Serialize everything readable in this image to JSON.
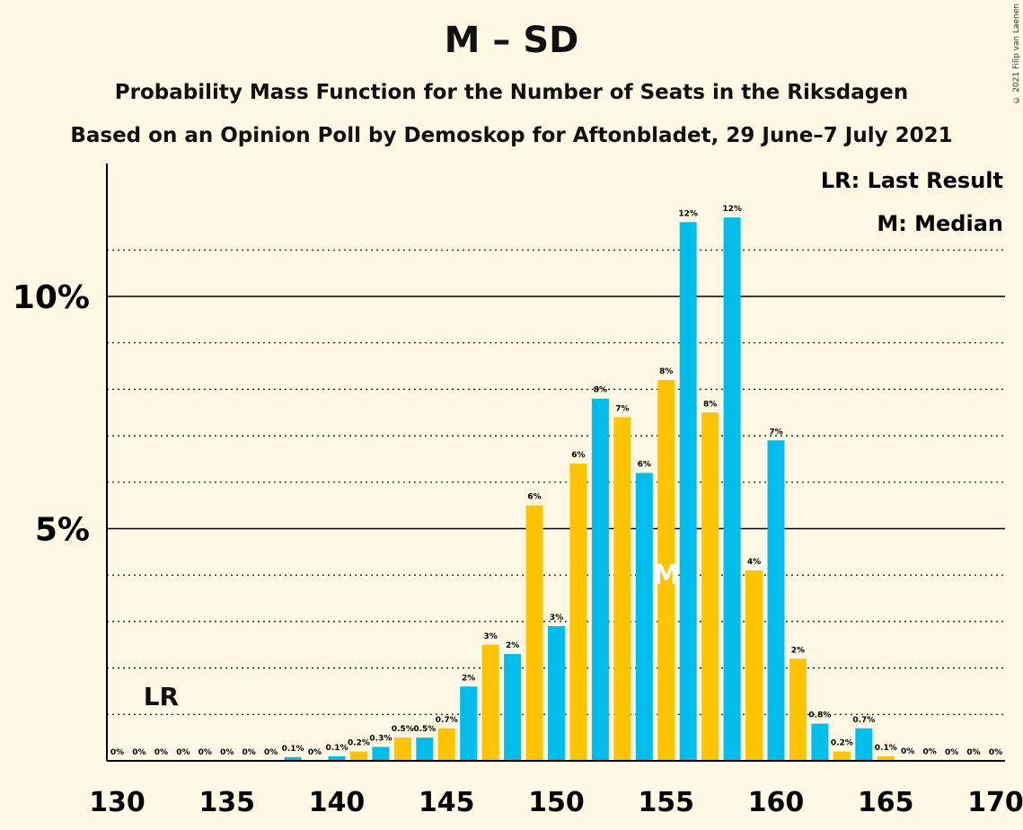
{
  "title": "M – SD",
  "subtitle1": "Probability Mass Function for the Number of Seats in the Riksdagen",
  "subtitle2": "Based on an Opinion Poll by Demoskop for Aftonbladet, 29 June–7 July 2021",
  "copyright": "© 2021 Filip van Laenen",
  "legend": {
    "last_result": "LR: Last Result",
    "median": "M: Median"
  },
  "markers": {
    "lr_label": "LR",
    "lr_seat": 132,
    "median_label": "M",
    "median_seat": 155
  },
  "colors": {
    "blue": "#00BDEB",
    "yellow": "#FFC300",
    "background": "#FFF8E5"
  },
  "chart_data": {
    "type": "bar",
    "x": [
      130,
      131,
      132,
      133,
      134,
      135,
      136,
      137,
      138,
      139,
      140,
      141,
      142,
      143,
      144,
      145,
      146,
      147,
      148,
      149,
      150,
      151,
      152,
      153,
      154,
      155,
      156,
      157,
      158,
      159,
      160,
      161,
      162,
      163,
      164,
      165,
      166,
      167,
      168,
      169,
      170
    ],
    "values": [
      0,
      0,
      0,
      0,
      0,
      0,
      0,
      0,
      0.08,
      0,
      0.1,
      0.2,
      0.3,
      0.5,
      0.5,
      0.7,
      1.6,
      2.5,
      2.3,
      5.5,
      2.9,
      6.4,
      7.8,
      7.4,
      6.2,
      8.2,
      11.6,
      7.5,
      11.7,
      4.1,
      6.9,
      2.2,
      0.8,
      0.2,
      0.7,
      0.1,
      0.02,
      0.01,
      0,
      0,
      0
    ],
    "labels": [
      "0%",
      "0%",
      "0%",
      "0%",
      "0%",
      "0%",
      "0%",
      "0%",
      "0.1%",
      "0%",
      "0.1%",
      "0.2%",
      "0.3%",
      "0.5%",
      "0.5%",
      "0.7%",
      "2%",
      "3%",
      "2%",
      "6%",
      "3%",
      "6%",
      "8%",
      "7%",
      "6%",
      "8%",
      "12%",
      "8%",
      "12%",
      "4%",
      "7%",
      "2%",
      "0.8%",
      "0.2%",
      "0.7%",
      "0.1%",
      "0%",
      "0%",
      "0%",
      "0%",
      "0%"
    ],
    "xticks": [
      130,
      135,
      140,
      145,
      150,
      155,
      160,
      165,
      170
    ],
    "xtick_labels": [
      "130",
      "135",
      "140",
      "145",
      "150",
      "155",
      "160",
      "165",
      "170"
    ],
    "yticks": [
      5,
      10
    ],
    "ytick_labels": [
      "5%",
      "10%"
    ],
    "ylim": [
      0,
      12.8
    ],
    "xlim": [
      130,
      170
    ],
    "grid": "dotted at every 1%, solid at 5% and 10%"
  }
}
